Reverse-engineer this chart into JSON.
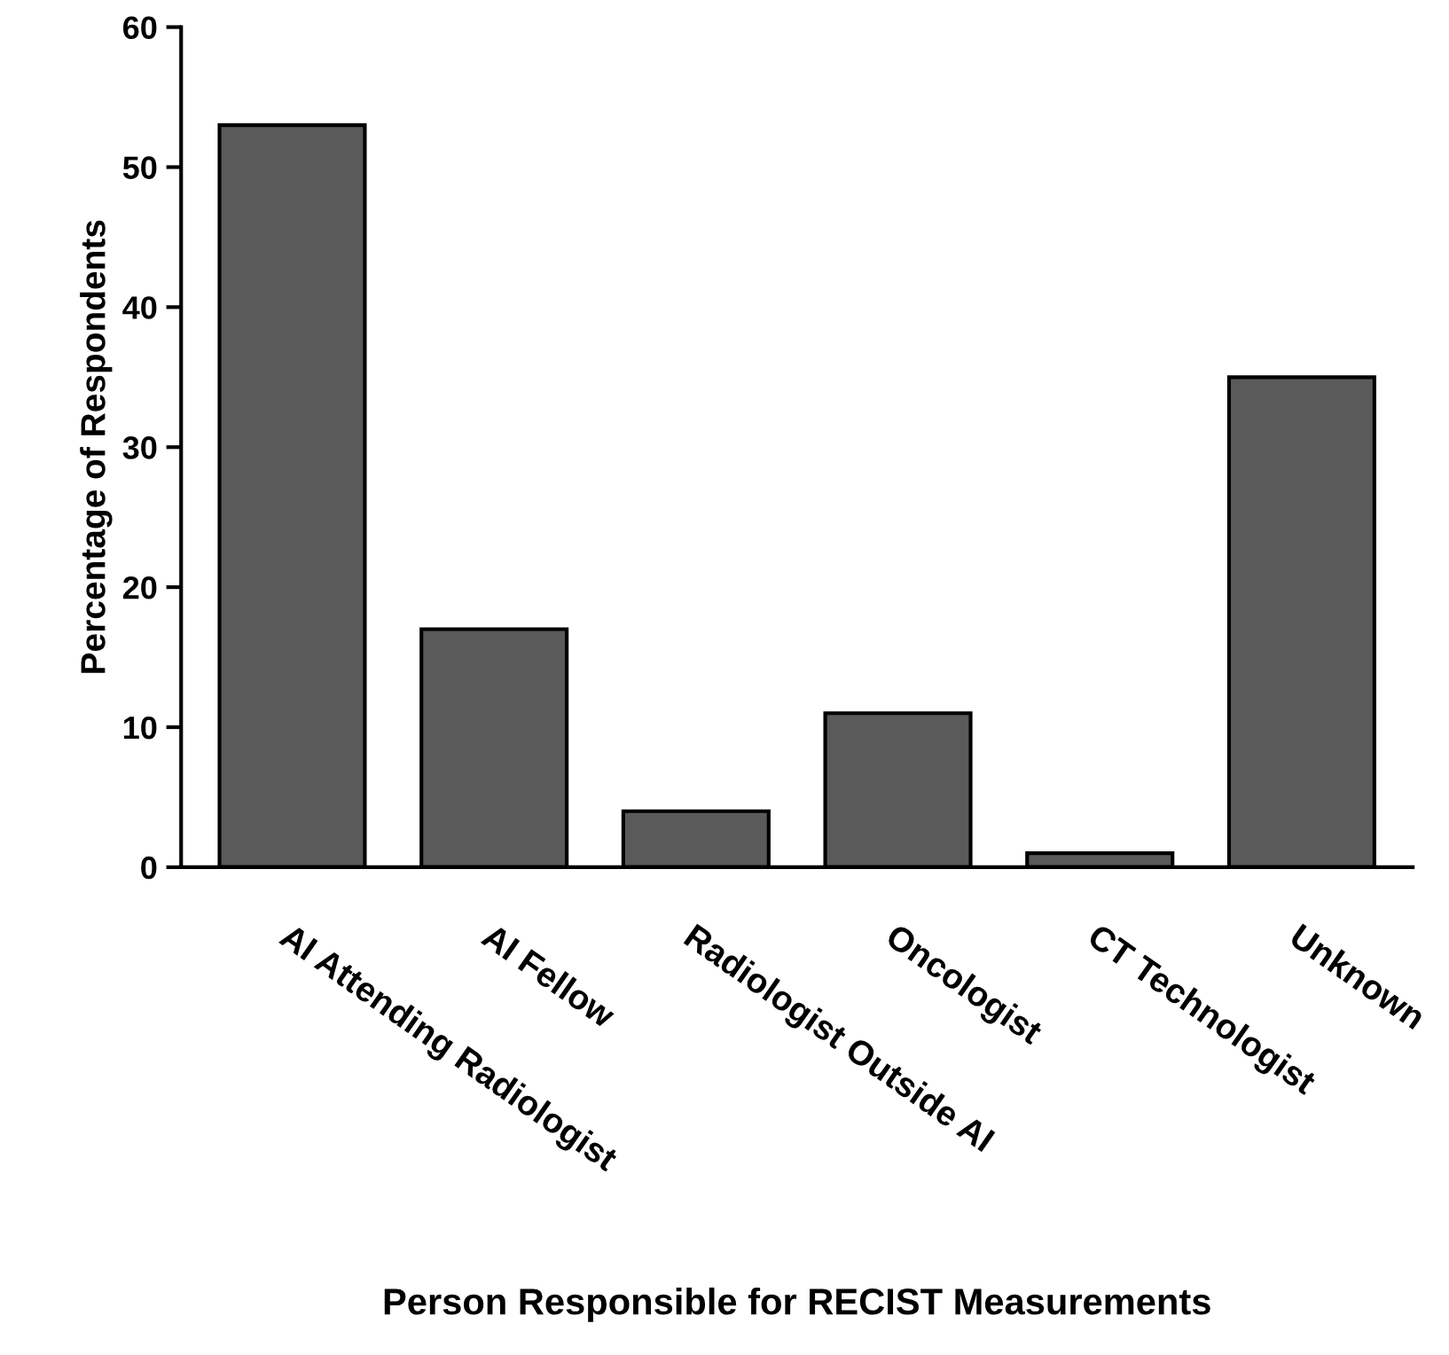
{
  "chart_data": {
    "type": "bar",
    "xlabel": "Person Responsible for RECIST Measurements",
    "ylabel": "Percentage of Respondents",
    "categories": [
      "AI Attending Radiologist",
      "AI Fellow",
      "Radiologist Outside AI",
      "Oncologist",
      "CT Technologist",
      "Unknown"
    ],
    "values": [
      53,
      17,
      4,
      11,
      1,
      35
    ],
    "color": "#5a5a5a",
    "ylim": [
      0,
      60
    ],
    "yticks": [
      0,
      10,
      20,
      30,
      40,
      50,
      60
    ],
    "grid": false
  }
}
